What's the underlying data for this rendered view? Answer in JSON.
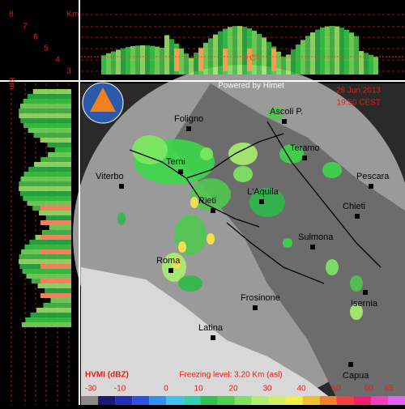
{
  "header": {
    "credit": "Powered by Himet",
    "date": "28 Jun 2013",
    "time": "19:50 CEST"
  },
  "profile": {
    "unit": "Km",
    "levels": [
      "8",
      "7",
      "6",
      "5",
      "4",
      "3"
    ],
    "freezing_label": "0 C°"
  },
  "cities": [
    "Foligno",
    "Ascoli P.",
    "Teramo",
    "Terni",
    "Pescara",
    "Viterbo",
    "Rieti",
    "L'Aquila",
    "Chieti",
    "Sulmona",
    "Roma",
    "Frosinone",
    "Latina",
    "Isernia",
    "Capua"
  ],
  "legend": {
    "product": "HVMI (dBZ)",
    "freezing_level": "Freezing level: 3.20 Km (asl)",
    "ticks": [
      "-30",
      "-10",
      "0",
      "10",
      "20",
      "30",
      "40",
      "50",
      "60",
      "65"
    ]
  }
}
